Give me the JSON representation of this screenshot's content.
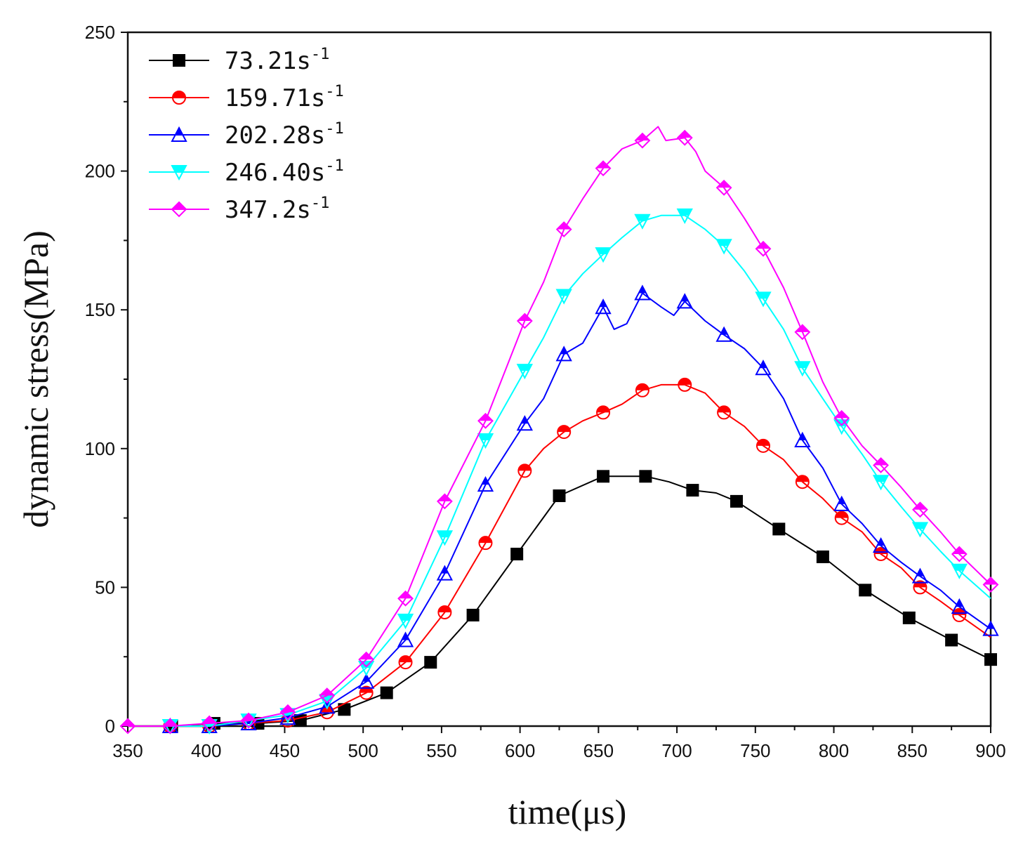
{
  "chart_data": {
    "type": "line",
    "title": "",
    "xlabel": "time(μs)",
    "ylabel": "dynamic stress(MPa)",
    "xlim": [
      350,
      900
    ],
    "ylim": [
      0,
      250
    ],
    "xticks": [
      350,
      400,
      450,
      500,
      550,
      600,
      650,
      700,
      750,
      800,
      850,
      900
    ],
    "yticks": [
      0,
      50,
      100,
      150,
      200,
      250
    ],
    "xtick_labels": [
      "350",
      "400",
      "450",
      "500",
      "550",
      "600",
      "650",
      "700",
      "750",
      "800",
      "850",
      "900"
    ],
    "ytick_labels": [
      "0",
      "50",
      "100",
      "150",
      "200",
      "250"
    ],
    "legend_position": "top-left",
    "grid": false,
    "series": [
      {
        "name": "73.21",
        "unit_sup": "-1",
        "unit_base": "s",
        "color": "#000000",
        "marker": "square",
        "points": [
          [
            350,
            0
          ],
          [
            378,
            0
          ],
          [
            405,
            1
          ],
          [
            433,
            1
          ],
          [
            460,
            2
          ],
          [
            488,
            6
          ],
          [
            515,
            12
          ],
          [
            543,
            23
          ],
          [
            570,
            40
          ],
          [
            598,
            62
          ],
          [
            625,
            83
          ],
          [
            653,
            90
          ],
          [
            665,
            90
          ],
          [
            680,
            90
          ],
          [
            695,
            88
          ],
          [
            710,
            85
          ],
          [
            725,
            84
          ],
          [
            738,
            81
          ],
          [
            765,
            71
          ],
          [
            793,
            61
          ],
          [
            820,
            49
          ],
          [
            848,
            39
          ],
          [
            875,
            31
          ],
          [
            900,
            24
          ]
        ],
        "markers": [
          [
            378,
            0
          ],
          [
            405,
            1
          ],
          [
            433,
            1
          ],
          [
            460,
            2
          ],
          [
            488,
            6
          ],
          [
            515,
            12
          ],
          [
            543,
            23
          ],
          [
            570,
            40
          ],
          [
            598,
            62
          ],
          [
            625,
            83
          ],
          [
            653,
            90
          ],
          [
            680,
            90
          ],
          [
            710,
            85
          ],
          [
            738,
            81
          ],
          [
            765,
            71
          ],
          [
            793,
            61
          ],
          [
            820,
            49
          ],
          [
            848,
            39
          ],
          [
            875,
            31
          ],
          [
            900,
            24
          ]
        ]
      },
      {
        "name": "159.71",
        "unit_sup": "-1",
        "unit_base": "s",
        "color": "#ff0000",
        "marker": "circle-half",
        "points": [
          [
            350,
            0
          ],
          [
            377,
            0
          ],
          [
            402,
            0
          ],
          [
            427,
            1
          ],
          [
            452,
            2
          ],
          [
            477,
            5
          ],
          [
            502,
            12
          ],
          [
            527,
            23
          ],
          [
            552,
            41
          ],
          [
            578,
            66
          ],
          [
            603,
            92
          ],
          [
            615,
            100
          ],
          [
            628,
            106
          ],
          [
            640,
            110
          ],
          [
            653,
            113
          ],
          [
            665,
            116
          ],
          [
            678,
            121
          ],
          [
            690,
            123
          ],
          [
            705,
            123
          ],
          [
            718,
            120
          ],
          [
            730,
            113
          ],
          [
            743,
            108
          ],
          [
            755,
            101
          ],
          [
            768,
            96
          ],
          [
            780,
            88
          ],
          [
            793,
            82
          ],
          [
            805,
            75
          ],
          [
            818,
            70
          ],
          [
            830,
            62
          ],
          [
            843,
            57
          ],
          [
            855,
            50
          ],
          [
            868,
            45
          ],
          [
            880,
            40
          ],
          [
            900,
            32
          ]
        ],
        "markers": [
          [
            377,
            0
          ],
          [
            402,
            0
          ],
          [
            427,
            1
          ],
          [
            452,
            2
          ],
          [
            477,
            5
          ],
          [
            502,
            12
          ],
          [
            527,
            23
          ],
          [
            552,
            41
          ],
          [
            578,
            66
          ],
          [
            603,
            92
          ],
          [
            628,
            106
          ],
          [
            653,
            113
          ],
          [
            678,
            121
          ],
          [
            705,
            123
          ],
          [
            730,
            113
          ],
          [
            755,
            101
          ],
          [
            780,
            88
          ],
          [
            805,
            75
          ],
          [
            830,
            62
          ],
          [
            855,
            50
          ],
          [
            880,
            40
          ]
        ]
      },
      {
        "name": "202.28",
        "unit_sup": "-1",
        "unit_base": "s",
        "color": "#0000ff",
        "marker": "triangle-up-half",
        "points": [
          [
            350,
            0
          ],
          [
            377,
            0
          ],
          [
            402,
            0
          ],
          [
            427,
            1
          ],
          [
            452,
            3
          ],
          [
            477,
            7
          ],
          [
            502,
            16
          ],
          [
            527,
            31
          ],
          [
            552,
            55
          ],
          [
            578,
            87
          ],
          [
            603,
            109
          ],
          [
            615,
            118
          ],
          [
            628,
            134
          ],
          [
            640,
            138
          ],
          [
            653,
            151
          ],
          [
            660,
            143
          ],
          [
            668,
            145
          ],
          [
            678,
            156
          ],
          [
            690,
            151
          ],
          [
            698,
            148
          ],
          [
            705,
            153
          ],
          [
            718,
            146
          ],
          [
            730,
            141
          ],
          [
            743,
            136
          ],
          [
            755,
            129
          ],
          [
            768,
            118
          ],
          [
            780,
            103
          ],
          [
            793,
            93
          ],
          [
            805,
            80
          ],
          [
            818,
            73
          ],
          [
            830,
            65
          ],
          [
            843,
            59
          ],
          [
            855,
            54
          ],
          [
            868,
            49
          ],
          [
            880,
            43
          ],
          [
            900,
            35
          ]
        ],
        "markers": [
          [
            377,
            0
          ],
          [
            402,
            0
          ],
          [
            427,
            1
          ],
          [
            452,
            3
          ],
          [
            477,
            7
          ],
          [
            502,
            16
          ],
          [
            527,
            31
          ],
          [
            552,
            55
          ],
          [
            578,
            87
          ],
          [
            603,
            109
          ],
          [
            628,
            134
          ],
          [
            653,
            151
          ],
          [
            678,
            156
          ],
          [
            705,
            153
          ],
          [
            730,
            141
          ],
          [
            755,
            129
          ],
          [
            780,
            103
          ],
          [
            805,
            80
          ],
          [
            830,
            65
          ],
          [
            855,
            54
          ],
          [
            880,
            43
          ],
          [
            900,
            35
          ]
        ]
      },
      {
        "name": "246.40",
        "unit_sup": "-1",
        "unit_base": "s",
        "color": "#00ffff",
        "marker": "triangle-down-half",
        "points": [
          [
            350,
            0
          ],
          [
            377,
            0
          ],
          [
            402,
            0
          ],
          [
            427,
            2
          ],
          [
            452,
            4
          ],
          [
            477,
            9
          ],
          [
            502,
            21
          ],
          [
            527,
            38
          ],
          [
            552,
            68
          ],
          [
            578,
            103
          ],
          [
            603,
            128
          ],
          [
            615,
            140
          ],
          [
            628,
            155
          ],
          [
            640,
            163
          ],
          [
            653,
            170
          ],
          [
            665,
            176
          ],
          [
            678,
            182
          ],
          [
            690,
            184
          ],
          [
            705,
            184
          ],
          [
            718,
            179
          ],
          [
            730,
            173
          ],
          [
            743,
            164
          ],
          [
            755,
            154
          ],
          [
            768,
            143
          ],
          [
            780,
            129
          ],
          [
            793,
            118
          ],
          [
            805,
            108
          ],
          [
            818,
            98
          ],
          [
            830,
            88
          ],
          [
            843,
            79
          ],
          [
            855,
            71
          ],
          [
            868,
            63
          ],
          [
            880,
            56
          ],
          [
            900,
            46
          ]
        ],
        "markers": [
          [
            377,
            0
          ],
          [
            402,
            0
          ],
          [
            427,
            2
          ],
          [
            452,
            4
          ],
          [
            477,
            9
          ],
          [
            502,
            21
          ],
          [
            527,
            38
          ],
          [
            552,
            68
          ],
          [
            578,
            103
          ],
          [
            603,
            128
          ],
          [
            628,
            155
          ],
          [
            653,
            170
          ],
          [
            678,
            182
          ],
          [
            705,
            184
          ],
          [
            730,
            173
          ],
          [
            755,
            154
          ],
          [
            780,
            129
          ],
          [
            805,
            108
          ],
          [
            830,
            88
          ],
          [
            855,
            71
          ],
          [
            880,
            56
          ]
        ]
      },
      {
        "name": "347.2",
        "unit_sup": "-1",
        "unit_base": "s",
        "color": "#ff00ff",
        "marker": "diamond-half",
        "points": [
          [
            350,
            0
          ],
          [
            377,
            0
          ],
          [
            402,
            1
          ],
          [
            427,
            2
          ],
          [
            452,
            5
          ],
          [
            477,
            11
          ],
          [
            502,
            24
          ],
          [
            527,
            46
          ],
          [
            552,
            81
          ],
          [
            578,
            110
          ],
          [
            603,
            146
          ],
          [
            615,
            160
          ],
          [
            628,
            179
          ],
          [
            640,
            190
          ],
          [
            653,
            201
          ],
          [
            665,
            208
          ],
          [
            678,
            211
          ],
          [
            688,
            216
          ],
          [
            693,
            211
          ],
          [
            705,
            212
          ],
          [
            712,
            207
          ],
          [
            718,
            200
          ],
          [
            730,
            194
          ],
          [
            743,
            183
          ],
          [
            755,
            172
          ],
          [
            768,
            158
          ],
          [
            780,
            142
          ],
          [
            793,
            124
          ],
          [
            805,
            111
          ],
          [
            818,
            101
          ],
          [
            830,
            94
          ],
          [
            843,
            86
          ],
          [
            855,
            78
          ],
          [
            868,
            70
          ],
          [
            880,
            62
          ],
          [
            900,
            51
          ]
        ],
        "markers": [
          [
            350,
            0
          ],
          [
            377,
            0
          ],
          [
            402,
            1
          ],
          [
            427,
            2
          ],
          [
            452,
            5
          ],
          [
            477,
            11
          ],
          [
            502,
            24
          ],
          [
            527,
            46
          ],
          [
            552,
            81
          ],
          [
            578,
            110
          ],
          [
            603,
            146
          ],
          [
            628,
            179
          ],
          [
            653,
            201
          ],
          [
            678,
            211
          ],
          [
            705,
            212
          ],
          [
            730,
            194
          ],
          [
            755,
            172
          ],
          [
            780,
            142
          ],
          [
            805,
            111
          ],
          [
            830,
            94
          ],
          [
            855,
            78
          ],
          [
            880,
            62
          ],
          [
            900,
            51
          ]
        ]
      }
    ]
  }
}
